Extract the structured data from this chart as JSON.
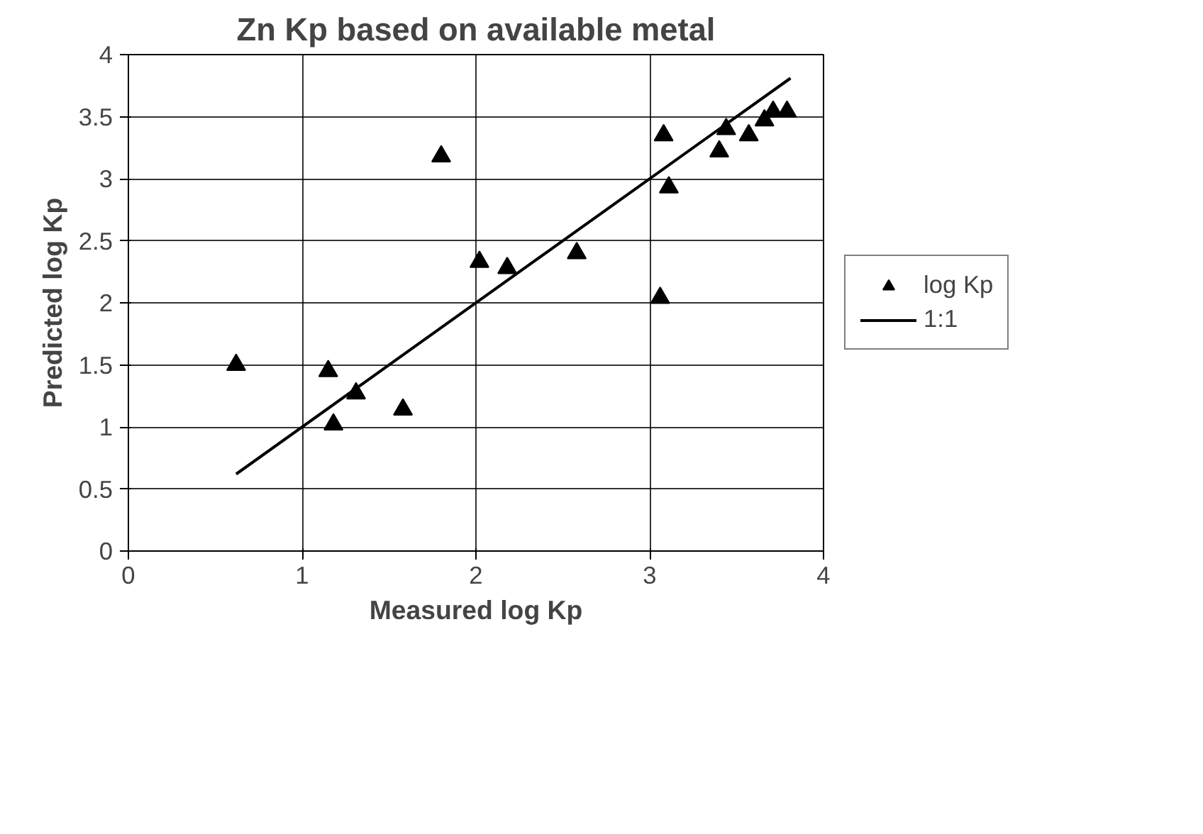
{
  "chart_data": {
    "type": "scatter",
    "title": "Zn Kp based on available metal",
    "xlabel": "Measured log Kp",
    "ylabel": "Predicted log Kp",
    "series": [
      {
        "name": "log Kp",
        "color": "#000000",
        "marker": "triangle",
        "x": [
          0.62,
          1.15,
          1.18,
          1.31,
          1.58,
          1.8,
          2.02,
          2.18,
          2.58,
          3.06,
          3.08,
          3.11,
          3.4,
          3.44,
          3.57,
          3.66,
          3.71,
          3.79
        ],
        "values": [
          1.5,
          1.45,
          1.02,
          1.27,
          1.14,
          3.18,
          2.33,
          2.28,
          2.4,
          2.04,
          3.35,
          2.93,
          3.22,
          3.4,
          3.35,
          3.47,
          3.54,
          3.54
        ]
      },
      {
        "name": "1:1",
        "type": "line",
        "color": "#000000",
        "x": [
          0.62,
          3.81
        ],
        "values": [
          0.62,
          3.81
        ]
      }
    ],
    "xlim": [
      0,
      4
    ],
    "ylim": [
      0,
      4
    ],
    "xticks": [
      0,
      1,
      2,
      3,
      4
    ],
    "yticks": [
      0,
      0.5,
      1,
      1.5,
      2,
      2.5,
      3,
      3.5,
      4
    ],
    "grid": true,
    "legend": "right"
  }
}
